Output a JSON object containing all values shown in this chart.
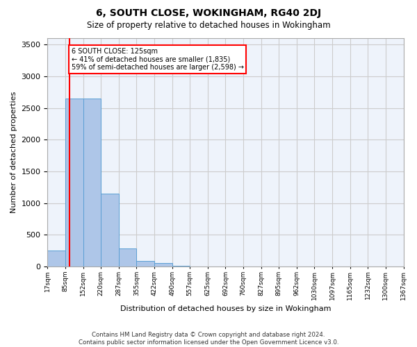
{
  "title": "6, SOUTH CLOSE, WOKINGHAM, RG40 2DJ",
  "subtitle": "Size of property relative to detached houses in Wokingham",
  "xlabel": "Distribution of detached houses by size in Wokingham",
  "ylabel": "Number of detached properties",
  "bin_labels": [
    "17sqm",
    "85sqm",
    "152sqm",
    "220sqm",
    "287sqm",
    "355sqm",
    "422sqm",
    "490sqm",
    "557sqm",
    "625sqm",
    "692sqm",
    "760sqm",
    "827sqm",
    "895sqm",
    "962sqm",
    "1030sqm",
    "1097sqm",
    "1165sqm",
    "1232sqm",
    "1300sqm",
    "1367sqm"
  ],
  "bar_heights": [
    250,
    2650,
    2650,
    1150,
    280,
    90,
    50,
    15,
    5,
    3,
    2,
    2,
    1,
    1,
    1,
    0,
    0,
    0,
    0,
    0
  ],
  "bar_color": "#aec6e8",
  "bar_edge_color": "#5a9fd4",
  "vline_x": 1.235,
  "vline_color": "red",
  "annotation_title": "6 SOUTH CLOSE: 125sqm",
  "annotation_line1": "← 41% of detached houses are smaller (1,835)",
  "annotation_line2": "59% of semi-detached houses are larger (2,598) →",
  "ylim": [
    0,
    3600
  ],
  "yticks": [
    0,
    500,
    1000,
    1500,
    2000,
    2500,
    3000,
    3500
  ],
  "grid_color": "#cccccc",
  "bg_color": "#eef3fb",
  "footer_line1": "Contains HM Land Registry data © Crown copyright and database right 2024.",
  "footer_line2": "Contains public sector information licensed under the Open Government Licence v3.0."
}
